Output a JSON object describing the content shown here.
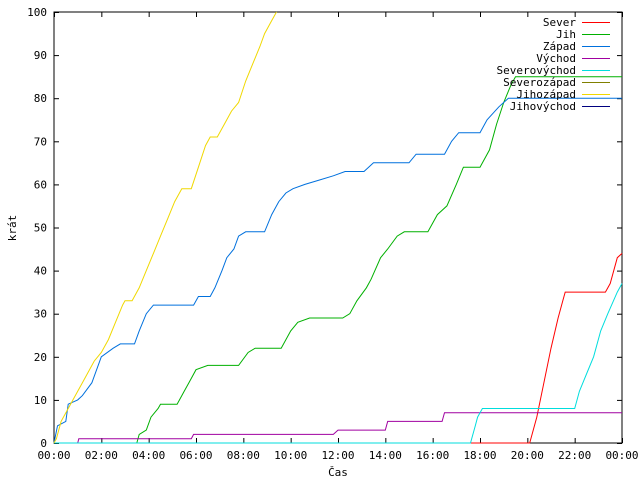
{
  "chart_data": {
    "type": "line",
    "title": "",
    "xlabel": "Čas",
    "ylabel": "krát",
    "x_unit": "hours",
    "xlim": [
      0,
      24
    ],
    "ylim": [
      0,
      100
    ],
    "x_ticks": [
      0,
      2,
      4,
      6,
      8,
      10,
      12,
      14,
      16,
      18,
      20,
      22,
      24
    ],
    "x_tick_labels": [
      "00:00",
      "02:00",
      "04:00",
      "06:00",
      "08:00",
      "10:00",
      "12:00",
      "14:00",
      "16:00",
      "18:00",
      "20:00",
      "22:00",
      "00:00"
    ],
    "y_ticks": [
      0,
      10,
      20,
      30,
      40,
      50,
      60,
      70,
      80,
      90,
      100
    ],
    "y_tick_labels": [
      "0",
      "10",
      "20",
      "30",
      "40",
      "50",
      "60",
      "70",
      "80",
      "90",
      "100"
    ],
    "grid": false,
    "legend_position": "top-right",
    "series": [
      {
        "name": "Sever",
        "color": "#ff0000",
        "points": [
          [
            0,
            0
          ],
          [
            20.1,
            0
          ],
          [
            20.4,
            6
          ],
          [
            20.7,
            14
          ],
          [
            21.0,
            22
          ],
          [
            21.3,
            29
          ],
          [
            21.5,
            33
          ],
          [
            21.6,
            35
          ],
          [
            23.3,
            35
          ],
          [
            23.5,
            37
          ],
          [
            23.8,
            43
          ],
          [
            24,
            44
          ]
        ]
      },
      {
        "name": "Jih",
        "color": "#00b000",
        "points": [
          [
            0,
            0
          ],
          [
            3.5,
            0
          ],
          [
            3.6,
            2
          ],
          [
            3.9,
            3
          ],
          [
            4.1,
            6
          ],
          [
            4.4,
            8
          ],
          [
            4.5,
            9
          ],
          [
            5.2,
            9
          ],
          [
            5.5,
            12
          ],
          [
            5.8,
            15
          ],
          [
            6.0,
            17
          ],
          [
            6.5,
            18
          ],
          [
            7.8,
            18
          ],
          [
            8.2,
            21
          ],
          [
            8.5,
            22
          ],
          [
            9.6,
            22
          ],
          [
            10.0,
            26
          ],
          [
            10.3,
            28
          ],
          [
            10.8,
            29
          ],
          [
            12.2,
            29
          ],
          [
            12.5,
            30
          ],
          [
            12.8,
            33
          ],
          [
            13.2,
            36
          ],
          [
            13.4,
            38
          ],
          [
            13.8,
            43
          ],
          [
            14.1,
            45
          ],
          [
            14.5,
            48
          ],
          [
            14.8,
            49
          ],
          [
            15.8,
            49
          ],
          [
            16.2,
            53
          ],
          [
            16.6,
            55
          ],
          [
            17.0,
            60
          ],
          [
            17.3,
            64
          ],
          [
            18.0,
            64
          ],
          [
            18.4,
            68
          ],
          [
            18.7,
            74
          ],
          [
            19.0,
            79
          ],
          [
            19.3,
            83
          ],
          [
            19.5,
            85
          ],
          [
            24,
            85
          ]
        ]
      },
      {
        "name": "Západ",
        "color": "#0070dd",
        "points": [
          [
            0,
            0
          ],
          [
            0.15,
            4
          ],
          [
            0.5,
            5
          ],
          [
            0.6,
            9
          ],
          [
            1.0,
            10
          ],
          [
            1.2,
            11
          ],
          [
            1.6,
            14
          ],
          [
            2.0,
            20
          ],
          [
            2.5,
            22
          ],
          [
            2.8,
            23
          ],
          [
            3.4,
            23
          ],
          [
            3.6,
            26
          ],
          [
            3.9,
            30
          ],
          [
            4.2,
            32
          ],
          [
            5.9,
            32
          ],
          [
            6.1,
            34
          ],
          [
            6.6,
            34
          ],
          [
            6.8,
            36
          ],
          [
            7.1,
            40
          ],
          [
            7.3,
            43
          ],
          [
            7.6,
            45
          ],
          [
            7.8,
            48
          ],
          [
            8.1,
            49
          ],
          [
            8.9,
            49
          ],
          [
            9.2,
            53
          ],
          [
            9.5,
            56
          ],
          [
            9.8,
            58
          ],
          [
            10.1,
            59
          ],
          [
            10.6,
            60
          ],
          [
            11.2,
            61
          ],
          [
            11.8,
            62
          ],
          [
            12.3,
            63
          ],
          [
            13.1,
            63
          ],
          [
            13.5,
            65
          ],
          [
            15.0,
            65
          ],
          [
            15.3,
            67
          ],
          [
            16.5,
            67
          ],
          [
            16.8,
            70
          ],
          [
            17.1,
            72
          ],
          [
            18.0,
            72
          ],
          [
            18.3,
            75
          ],
          [
            18.8,
            78
          ],
          [
            19.2,
            80
          ],
          [
            24,
            80
          ]
        ]
      },
      {
        "name": "Východ",
        "color": "#a000a0",
        "points": [
          [
            0,
            0
          ],
          [
            1.0,
            0
          ],
          [
            1.05,
            1
          ],
          [
            5.8,
            1
          ],
          [
            5.9,
            2
          ],
          [
            11.8,
            2
          ],
          [
            12.0,
            3
          ],
          [
            14.0,
            3
          ],
          [
            14.1,
            5
          ],
          [
            16.4,
            5
          ],
          [
            16.5,
            7
          ],
          [
            24,
            7
          ]
        ]
      },
      {
        "name": "Severovýchod",
        "color": "#00dddd",
        "points": [
          [
            0,
            0
          ],
          [
            17.6,
            0
          ],
          [
            17.8,
            4
          ],
          [
            17.9,
            6
          ],
          [
            18.1,
            8
          ],
          [
            22.0,
            8
          ],
          [
            22.2,
            12
          ],
          [
            22.5,
            16
          ],
          [
            22.8,
            20
          ],
          [
            23.1,
            26
          ],
          [
            23.4,
            30
          ],
          [
            23.8,
            35
          ],
          [
            24,
            37
          ]
        ]
      },
      {
        "name": "Severozápad",
        "color": "#808000",
        "points": []
      },
      {
        "name": "Jihozápad",
        "color": "#f0d800",
        "points": [
          [
            0,
            0
          ],
          [
            0.1,
            1
          ],
          [
            0.3,
            5
          ],
          [
            0.6,
            8
          ],
          [
            1.0,
            12
          ],
          [
            1.3,
            15
          ],
          [
            1.7,
            19
          ],
          [
            2.0,
            21
          ],
          [
            2.3,
            24
          ],
          [
            2.6,
            28
          ],
          [
            2.9,
            32
          ],
          [
            3.0,
            33
          ],
          [
            3.3,
            33
          ],
          [
            3.6,
            36
          ],
          [
            3.9,
            40
          ],
          [
            4.2,
            44
          ],
          [
            4.5,
            48
          ],
          [
            4.8,
            52
          ],
          [
            5.1,
            56
          ],
          [
            5.4,
            59
          ],
          [
            5.8,
            59
          ],
          [
            6.1,
            64
          ],
          [
            6.4,
            69
          ],
          [
            6.6,
            71
          ],
          [
            6.9,
            71
          ],
          [
            7.2,
            74
          ],
          [
            7.5,
            77
          ],
          [
            7.8,
            79
          ],
          [
            8.1,
            84
          ],
          [
            8.4,
            88
          ],
          [
            8.7,
            92
          ],
          [
            8.9,
            95
          ],
          [
            9.2,
            98
          ],
          [
            9.4,
            100
          ]
        ]
      },
      {
        "name": "Jihovýchod",
        "color": "#000080",
        "points": []
      }
    ]
  }
}
